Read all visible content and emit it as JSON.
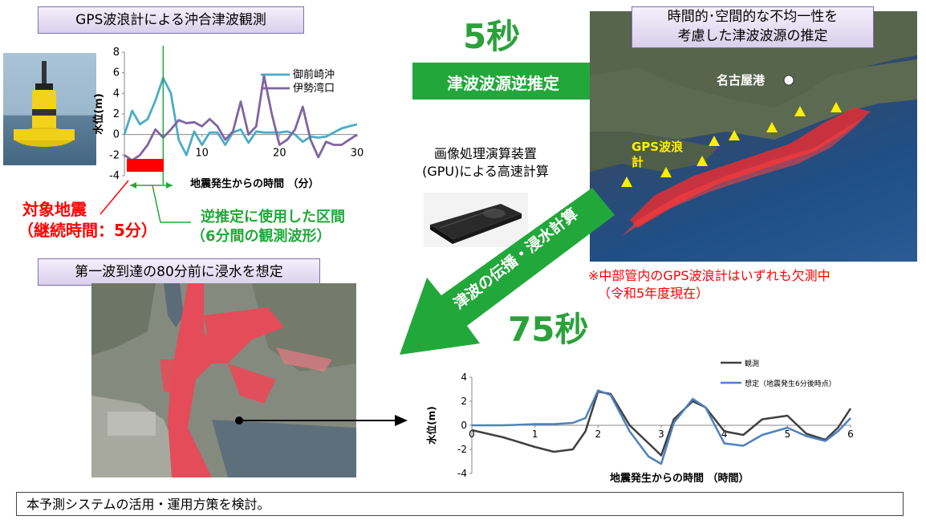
{
  "gps_title": "GPS波浪計による沖合津波観測",
  "time_5s": "5秒",
  "time_75s": "75秒",
  "arrow_inverse": "津波波源逆推定",
  "arrow_propagation": "津波の伝播・浸水計算",
  "gpu_line1": "画像処理演算装置",
  "gpu_line2": "(GPU)による高速計算",
  "source_title_line1": "時間的･空間的な不均一性を",
  "source_title_line2": "考慮した津波波源の推定",
  "map_nagoya": "名古屋港",
  "map_gps_line1": "GPS波浪",
  "map_gps_line2": "計",
  "missing_note_line1": "※中部管内のGPS波浪計はいずれも欠測中",
  "missing_note_line2": "（令和5年度現在）",
  "target_eq_line1": "対象地震",
  "target_eq_line2": "（継続時間：5分）",
  "interval_line1": "逆推定に使用した区間",
  "interval_line2": "（6分間の観測波形）",
  "inundation_title": "第一波到達の80分前に浸水を想定",
  "bottom_note": "本予測システムの活用・運用方策を検討。",
  "colors": {
    "green": "#22a83a",
    "red": "#ff0000",
    "series_a": "#4bacc6",
    "series_b": "#8064a2",
    "obs": "#404040",
    "pred": "#4f81bd"
  },
  "chart_data": [
    {
      "type": "line",
      "title": "",
      "xlabel": "地震発生からの時間 （分）",
      "ylabel": "水位(m)",
      "xlim": [
        0,
        30
      ],
      "ylim": [
        -4,
        8
      ],
      "xticks": [
        "10",
        "20",
        "30"
      ],
      "yticks": [
        "8",
        "6",
        "4",
        "2",
        "0",
        "-2",
        "-4"
      ],
      "legend": "top-right",
      "series": [
        {
          "name": "御前崎沖",
          "color": "#4bacc6",
          "x": [
            0,
            1,
            2,
            3,
            4,
            5,
            6,
            7,
            8,
            9,
            10,
            11,
            12,
            13,
            14,
            15,
            16,
            17,
            18,
            19,
            20,
            21,
            22,
            23,
            24,
            25,
            26,
            27,
            28,
            29,
            30
          ],
          "y": [
            0,
            2.3,
            1,
            1.5,
            3.3,
            5.5,
            4,
            -0.5,
            -2,
            0.3,
            -1,
            0.2,
            0.2,
            -1,
            0.2,
            0.5,
            -0.8,
            0.3,
            0.2,
            0.2,
            0.2,
            0.3,
            0,
            -0.7,
            -0.2,
            -0.3,
            -0.2,
            0.2,
            0.6,
            0.8,
            1
          ]
        },
        {
          "name": "伊勢湾口",
          "color": "#8064a2",
          "x": [
            0,
            1,
            2,
            3,
            4,
            5,
            6,
            7,
            8,
            9,
            10,
            11,
            12,
            13,
            14,
            15,
            16,
            17,
            18,
            19,
            20,
            21,
            22,
            23,
            24,
            25,
            26,
            27,
            28,
            29,
            30
          ],
          "y": [
            -2,
            -2.5,
            -2,
            -1,
            0.5,
            -0.3,
            0.5,
            1.4,
            1.1,
            1.2,
            0.8,
            1.5,
            0.8,
            -0.5,
            0.3,
            3.2,
            0,
            0.8,
            5.7,
            2,
            -1,
            -0.5,
            0.5,
            2.7,
            -0.5,
            -2.2,
            -0.7,
            -1,
            -1,
            -0.5,
            0
          ]
        }
      ]
    },
    {
      "type": "line",
      "title": "",
      "xlabel": "地震発生からの時間 （時間）",
      "ylabel": "水位(m)",
      "xlim": [
        0,
        6
      ],
      "ylim": [
        -4,
        4
      ],
      "xticks": [
        "0",
        "1",
        "2",
        "3",
        "4",
        "5",
        "6"
      ],
      "yticks": [
        "4",
        "2",
        "0",
        "-2",
        "-4"
      ],
      "legend": "top-right",
      "series": [
        {
          "name": "観測",
          "color": "#404040",
          "x": [
            0,
            0.5,
            1,
            1.3,
            1.6,
            1.8,
            2,
            2.2,
            2.5,
            2.8,
            3,
            3.2,
            3.5,
            3.7,
            4,
            4.3,
            4.6,
            5,
            5.3,
            5.6,
            5.8,
            6
          ],
          "y": [
            -0.4,
            -1,
            -1.8,
            -2.2,
            -2,
            -0.5,
            2.8,
            2.6,
            0,
            -1.5,
            -2.5,
            0.5,
            2,
            1.5,
            -0.5,
            -0.8,
            0.5,
            0.8,
            -0.7,
            -1.2,
            -0.2,
            1.4
          ]
        },
        {
          "name": "想定（地震発生6分後時点）",
          "color": "#4f81bd",
          "x": [
            0,
            0.5,
            1,
            1.3,
            1.6,
            1.8,
            2,
            2.2,
            2.5,
            2.8,
            3,
            3.2,
            3.5,
            3.7,
            4,
            4.3,
            4.6,
            5,
            5.3,
            5.6,
            5.8,
            6
          ],
          "y": [
            0,
            0,
            0.1,
            0.1,
            0.2,
            0.6,
            2.9,
            2.5,
            -0.5,
            -2.6,
            -3.2,
            0.2,
            2.2,
            1.5,
            -1.5,
            -1.7,
            -0.8,
            -0.2,
            -0.9,
            -1.3,
            -0.5,
            0.6
          ]
        }
      ]
    }
  ]
}
